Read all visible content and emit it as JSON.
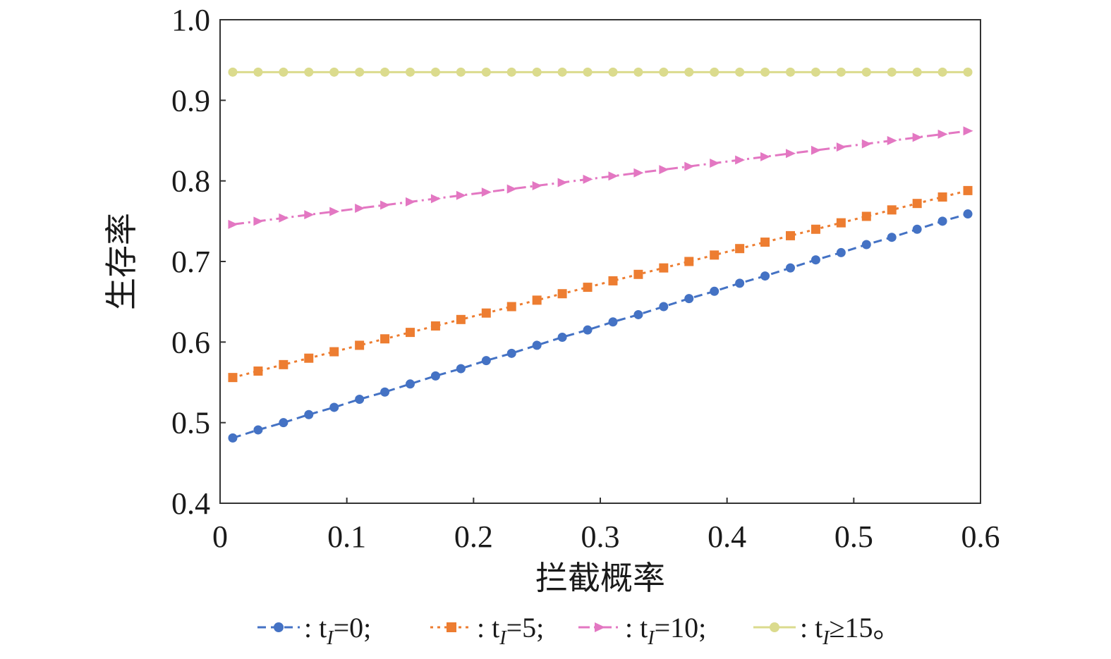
{
  "chart_data": {
    "type": "line",
    "title": "",
    "xlabel": "拦截概率",
    "ylabel": "生存率",
    "xlim": [
      0,
      0.6
    ],
    "ylim": [
      0.4,
      1.0
    ],
    "x_ticks": [
      "0",
      "0.1",
      "0.2",
      "0.3",
      "0.4",
      "0.5",
      "0.6"
    ],
    "y_ticks": [
      "0.4",
      "0.5",
      "0.6",
      "0.7",
      "0.8",
      "0.9",
      "1.0"
    ],
    "grid": false,
    "legend_position": "bottom",
    "x": [
      0.01,
      0.03,
      0.05,
      0.07,
      0.09,
      0.11,
      0.13,
      0.15,
      0.17,
      0.19,
      0.21,
      0.23,
      0.25,
      0.27,
      0.29,
      0.31,
      0.33,
      0.35,
      0.37,
      0.39,
      0.41,
      0.43,
      0.45,
      0.47,
      0.49,
      0.51,
      0.53,
      0.55,
      0.57,
      0.59
    ],
    "series": [
      {
        "name": "tI=0",
        "legend_prefix": ": t",
        "legend_sub": "I",
        "legend_suffix": "=0;",
        "color": "#4472C4",
        "marker": "circle",
        "line_style": "dashed",
        "values": [
          0.481,
          0.491,
          0.5,
          0.51,
          0.519,
          0.529,
          0.538,
          0.548,
          0.558,
          0.567,
          0.577,
          0.586,
          0.596,
          0.606,
          0.615,
          0.625,
          0.634,
          0.644,
          0.654,
          0.663,
          0.673,
          0.682,
          0.692,
          0.702,
          0.711,
          0.721,
          0.73,
          0.74,
          0.75,
          0.759
        ]
      },
      {
        "name": "tI=5",
        "legend_prefix": ": t",
        "legend_sub": "I",
        "legend_suffix": "=5;",
        "color": "#ED7D31",
        "marker": "square",
        "line_style": "dotted",
        "values": [
          0.556,
          0.564,
          0.572,
          0.58,
          0.588,
          0.596,
          0.604,
          0.612,
          0.62,
          0.628,
          0.636,
          0.644,
          0.652,
          0.66,
          0.668,
          0.676,
          0.684,
          0.692,
          0.7,
          0.708,
          0.716,
          0.724,
          0.732,
          0.74,
          0.748,
          0.756,
          0.764,
          0.772,
          0.78,
          0.788
        ]
      },
      {
        "name": "tI=10",
        "legend_prefix": ": t",
        "legend_sub": "I",
        "legend_suffix": "=10;",
        "color": "#E377C2",
        "marker": "triangle-right",
        "line_style": "dashdot",
        "values": [
          0.746,
          0.75,
          0.754,
          0.758,
          0.762,
          0.766,
          0.77,
          0.774,
          0.778,
          0.782,
          0.786,
          0.79,
          0.794,
          0.798,
          0.802,
          0.806,
          0.81,
          0.814,
          0.818,
          0.822,
          0.826,
          0.83,
          0.834,
          0.838,
          0.842,
          0.846,
          0.85,
          0.854,
          0.858,
          0.862
        ]
      },
      {
        "name": "tI≥15",
        "legend_prefix": ": t",
        "legend_sub": "I",
        "legend_suffix": "≥15。",
        "color": "#DBDB8D",
        "marker": "circle",
        "line_style": "solid",
        "values": [
          0.935,
          0.935,
          0.935,
          0.935,
          0.935,
          0.935,
          0.935,
          0.935,
          0.935,
          0.935,
          0.935,
          0.935,
          0.935,
          0.935,
          0.935,
          0.935,
          0.935,
          0.935,
          0.935,
          0.935,
          0.935,
          0.935,
          0.935,
          0.935,
          0.935,
          0.935,
          0.935,
          0.935,
          0.935,
          0.935
        ]
      }
    ]
  }
}
